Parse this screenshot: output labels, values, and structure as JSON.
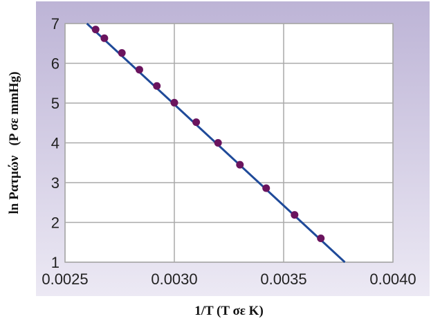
{
  "chart_data": {
    "type": "scatter",
    "title": "",
    "xlabel": "1/T (T σε K)",
    "ylabel": "ln Pατμών   (P σε mmHg)",
    "xlim": [
      0.0025,
      0.004
    ],
    "ylim": [
      1,
      7
    ],
    "x_ticks": [
      "0.0025",
      "0.0030",
      "0.0035",
      "0.0040"
    ],
    "y_ticks": [
      "1",
      "2",
      "3",
      "4",
      "5",
      "6",
      "7"
    ],
    "grid": true,
    "colors": {
      "background_top": "#bdb4d6",
      "background_bottom": "#ece9f4",
      "plot_area": "#ffffff",
      "grid": "#a9a9a9",
      "line": "#1f4a99",
      "points": "#6a145e"
    },
    "points": [
      {
        "x": 0.00264,
        "y": 6.85
      },
      {
        "x": 0.00268,
        "y": 6.63
      },
      {
        "x": 0.00276,
        "y": 6.26
      },
      {
        "x": 0.00284,
        "y": 5.84
      },
      {
        "x": 0.00292,
        "y": 5.43
      },
      {
        "x": 0.003,
        "y": 5.01
      },
      {
        "x": 0.0031,
        "y": 4.52
      },
      {
        "x": 0.0032,
        "y": 4.0
      },
      {
        "x": 0.0033,
        "y": 3.45
      },
      {
        "x": 0.00342,
        "y": 2.86
      },
      {
        "x": 0.00355,
        "y": 2.19
      },
      {
        "x": 0.00367,
        "y": 1.6
      }
    ],
    "fit_line": {
      "x": [
        0.0026,
        0.00378
      ],
      "y": [
        7.0,
        1.0
      ]
    }
  }
}
